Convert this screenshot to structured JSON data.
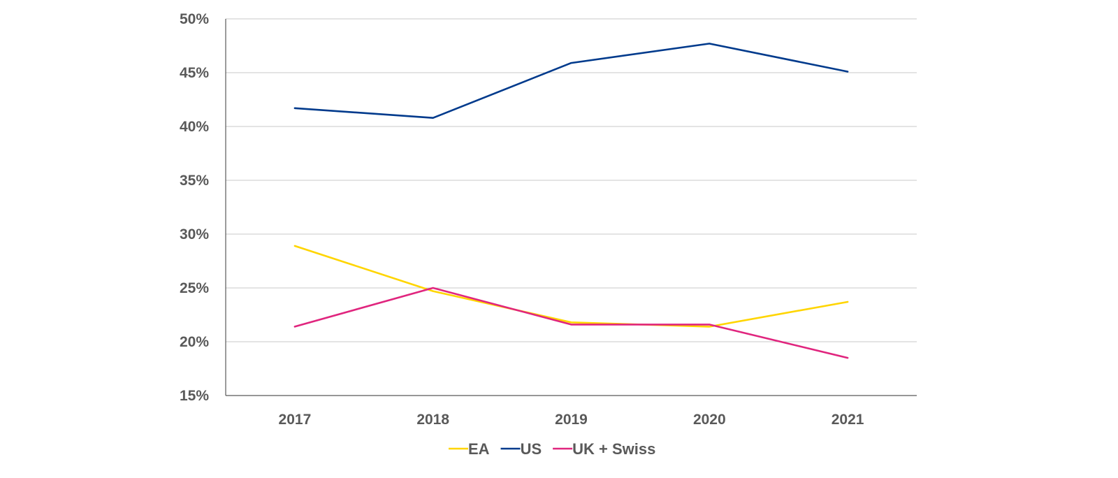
{
  "chart_data": {
    "type": "line",
    "title": "",
    "xlabel": "",
    "ylabel": "",
    "categories": [
      "2017",
      "2018",
      "2019",
      "2020",
      "2021"
    ],
    "ylim": [
      15,
      50
    ],
    "y_ticks": [
      15,
      20,
      25,
      30,
      35,
      40,
      45,
      50
    ],
    "y_tick_labels": [
      "15%",
      "20%",
      "25%",
      "30%",
      "35%",
      "40%",
      "45%",
      "50%"
    ],
    "grid": true,
    "legend_position": "bottom-center",
    "series": [
      {
        "name": "EA",
        "color": "#FFD500",
        "values": [
          28.9,
          24.7,
          21.8,
          21.4,
          23.7
        ]
      },
      {
        "name": "US",
        "color": "#003A8C",
        "values": [
          41.7,
          40.8,
          45.9,
          47.7,
          45.1
        ]
      },
      {
        "name": "UK + Swiss",
        "color": "#E0257E",
        "values": [
          21.4,
          25.0,
          21.6,
          21.6,
          18.5
        ]
      }
    ]
  }
}
